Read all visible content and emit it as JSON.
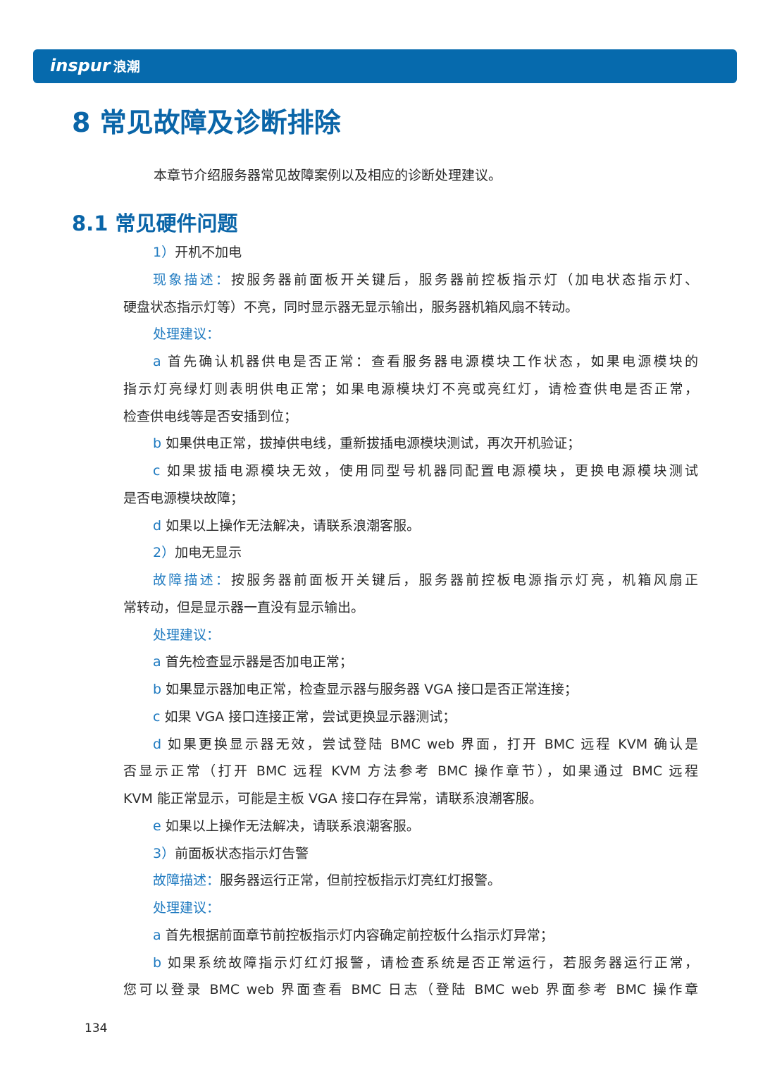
{
  "header": {
    "logo_text": "inspur",
    "logo_cn": "浪潮",
    "brand_color": "#066aad"
  },
  "title": "8 常见故障及诊断排除",
  "intro": "本章节介绍服务器常见故障案例以及相应的诊断处理建议。",
  "section": "8.1 常见硬件问题",
  "lines": [
    {
      "indent": true,
      "prefix": "1）",
      "text": "开机不加电"
    },
    {
      "indent": true,
      "prefix": "现象描述：",
      "text": "按服务器前面板开关键后，服务器前控板指示灯（加电状态指示灯、",
      "full": true
    },
    {
      "indent": false,
      "prefix": "",
      "text": "硬盘状态指示灯等）不亮，同时显示器无显示输出，服务器机箱风扇不转动。"
    },
    {
      "indent": true,
      "prefix": "处理建议：",
      "text": ""
    },
    {
      "indent": true,
      "prefix": "a",
      "text": " 首先确认机器供电是否正常：查看服务器电源模块工作状态，如果电源模块的",
      "full": true
    },
    {
      "indent": false,
      "prefix": "",
      "text": "指示灯亮绿灯则表明供电正常；如果电源模块灯不亮或亮红灯，请检查供电是否正常，",
      "full": true
    },
    {
      "indent": false,
      "prefix": "",
      "text": "检查供电线等是否安插到位；"
    },
    {
      "indent": true,
      "prefix": "b",
      "text": " 如果供电正常，拔掉供电线，重新拔插电源模块测试，再次开机验证；"
    },
    {
      "indent": true,
      "prefix": "c",
      "text": " 如果拔插电源模块无效，使用同型号机器同配置电源模块，更换电源模块测试",
      "full": true
    },
    {
      "indent": false,
      "prefix": "",
      "text": "是否电源模块故障；"
    },
    {
      "indent": true,
      "prefix": "d",
      "text": " 如果以上操作无法解决，请联系浪潮客服。"
    },
    {
      "indent": true,
      "prefix": "2）",
      "text": "加电无显示"
    },
    {
      "indent": true,
      "prefix": "故障描述：",
      "text": "按服务器前面板开关键后，服务器前控板电源指示灯亮，机箱风扇正",
      "full": true
    },
    {
      "indent": false,
      "prefix": "",
      "text": "常转动，但是显示器一直没有显示输出。"
    },
    {
      "indent": true,
      "prefix": "处理建议：",
      "text": ""
    },
    {
      "indent": true,
      "prefix": "a",
      "text": " 首先检查显示器是否加电正常；"
    },
    {
      "indent": true,
      "prefix": "b",
      "text": " 如果显示器加电正常，检查显示器与服务器 VGA 接口是否正常连接；"
    },
    {
      "indent": true,
      "prefix": "c",
      "text": " 如果 VGA 接口连接正常，尝试更换显示器测试；"
    },
    {
      "indent": true,
      "prefix": "d",
      "text": " 如果更换显示器无效，尝试登陆 BMC web 界面，打开 BMC 远程 KVM 确认是",
      "full": true
    },
    {
      "indent": false,
      "prefix": "",
      "text": "否显示正常（打开 BMC 远程 KVM 方法参考 BMC 操作章节），如果通过 BMC 远程",
      "full": true
    },
    {
      "indent": false,
      "prefix": "",
      "text": "KVM 能正常显示，可能是主板 VGA 接口存在异常，请联系浪潮客服。"
    },
    {
      "indent": true,
      "prefix": "e",
      "text": " 如果以上操作无法解决，请联系浪潮客服。"
    },
    {
      "indent": true,
      "prefix": "3）",
      "text": "前面板状态指示灯告警"
    },
    {
      "indent": true,
      "prefix": "故障描述：",
      "text": "服务器运行正常，但前控板指示灯亮红灯报警。"
    },
    {
      "indent": true,
      "prefix": "处理建议：",
      "text": ""
    },
    {
      "indent": true,
      "prefix": "a",
      "text": " 首先根据前面章节前控板指示灯内容确定前控板什么指示灯异常；"
    },
    {
      "indent": true,
      "prefix": "b",
      "text": " 如果系统故障指示灯红灯报警，请检查系统是否正常运行，若服务器运行正常，",
      "full": true
    },
    {
      "indent": false,
      "prefix": "",
      "text": "您可以登录 BMC web 界面查看 BMC 日志（登陆 BMC web 界面参考 BMC 操作章",
      "full": true
    }
  ],
  "page_number": "134"
}
